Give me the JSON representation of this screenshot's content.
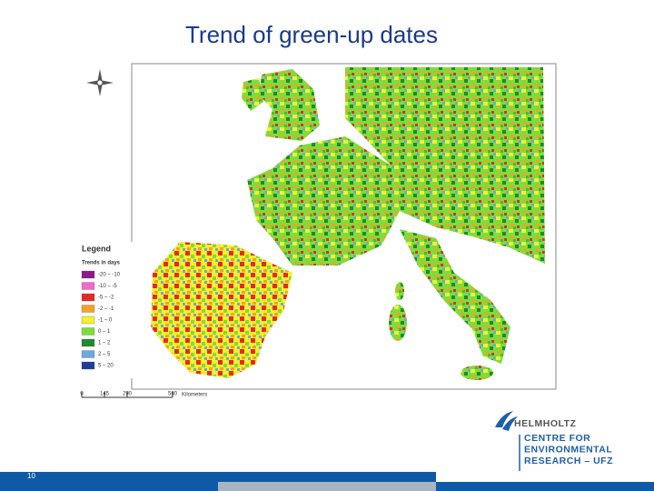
{
  "title": "Trend of green-up dates",
  "legend": {
    "title": "Legend",
    "subtitle": "Trends in days",
    "items": [
      {
        "label": "-20 – -10",
        "color": "#8e1b8c"
      },
      {
        "label": "-10 – -5",
        "color": "#f06ad0"
      },
      {
        "label": "-5 – -2",
        "color": "#e52a25"
      },
      {
        "label": "-2 – -1",
        "color": "#f5a02a"
      },
      {
        "label": "-1 – 0",
        "color": "#f4f02c"
      },
      {
        "label": "0 – 1",
        "color": "#7fdc3c"
      },
      {
        "label": "1 – 2",
        "color": "#1f8a2f"
      },
      {
        "label": "2 – 5",
        "color": "#6ea7dc"
      },
      {
        "label": "5 – 20",
        "color": "#1d3e98"
      }
    ]
  },
  "scale_bar": {
    "ticks": [
      "0",
      "145",
      "290",
      "580"
    ],
    "unit": "Kilometers"
  },
  "logo": {
    "lines": [
      "HELMHOLTZ",
      "CENTRE FOR",
      "ENVIRONMENTAL",
      "RESEARCH – UFZ"
    ]
  },
  "page_number": "10"
}
